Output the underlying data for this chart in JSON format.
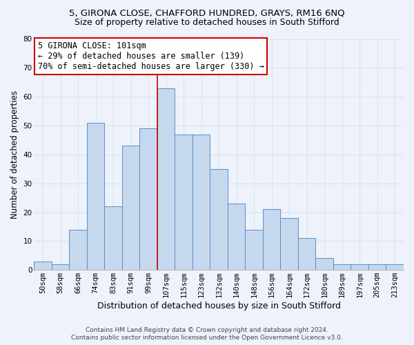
{
  "title1": "5, GIRONA CLOSE, CHAFFORD HUNDRED, GRAYS, RM16 6NQ",
  "title2": "Size of property relative to detached houses in South Stifford",
  "xlabel": "Distribution of detached houses by size in South Stifford",
  "ylabel": "Number of detached properties",
  "categories": [
    "50sqm",
    "58sqm",
    "66sqm",
    "74sqm",
    "83sqm",
    "91sqm",
    "99sqm",
    "107sqm",
    "115sqm",
    "123sqm",
    "132sqm",
    "140sqm",
    "148sqm",
    "156sqm",
    "164sqm",
    "172sqm",
    "180sqm",
    "189sqm",
    "197sqm",
    "205sqm",
    "213sqm"
  ],
  "values": [
    3,
    2,
    14,
    51,
    22,
    43,
    49,
    63,
    47,
    47,
    35,
    23,
    14,
    21,
    18,
    11,
    4,
    2,
    2,
    2,
    2
  ],
  "bar_color": "#c5d8ee",
  "bar_edge_color": "#5b8dc8",
  "background_color": "#eef2fa",
  "grid_color": "#d8e4f0",
  "ylim": [
    0,
    80
  ],
  "yticks": [
    0,
    10,
    20,
    30,
    40,
    50,
    60,
    70,
    80
  ],
  "vline_x": 6.5,
  "vline_color": "#cc0000",
  "annotation_title": "5 GIRONA CLOSE: 101sqm",
  "annotation_line1": "← 29% of detached houses are smaller (139)",
  "annotation_line2": "70% of semi-detached houses are larger (330) →",
  "annotation_box_facecolor": "#ffffff",
  "annotation_border_color": "#cc0000",
  "footer1": "Contains HM Land Registry data © Crown copyright and database right 2024.",
  "footer2": "Contains public sector information licensed under the Open Government Licence v3.0.",
  "title1_fontsize": 9.5,
  "title2_fontsize": 9,
  "xlabel_fontsize": 9,
  "ylabel_fontsize": 8.5,
  "tick_fontsize": 7.5,
  "annotation_fontsize": 8.5,
  "footer_fontsize": 6.5
}
